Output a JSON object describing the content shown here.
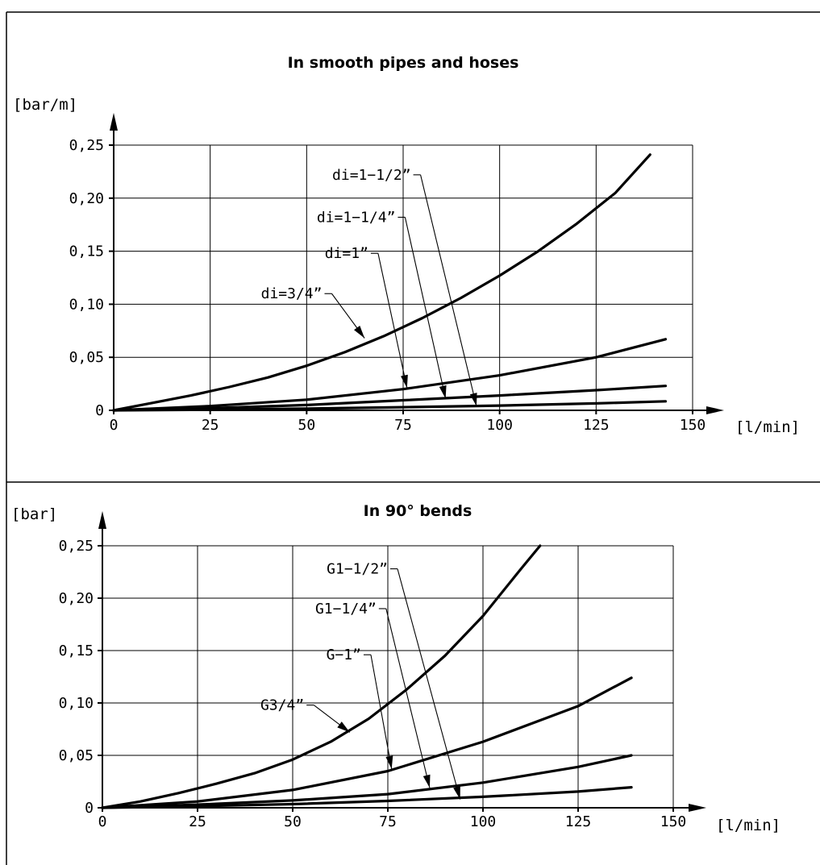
{
  "chart_data": [
    {
      "type": "line",
      "title": "In smooth pipes and hoses",
      "xlabel": "[l/min]",
      "ylabel": "[bar/m]",
      "xlim": [
        0,
        150
      ],
      "ylim": [
        0,
        0.25
      ],
      "x_ticks": [
        "0",
        "25",
        "50",
        "75",
        "100",
        "125",
        "150"
      ],
      "y_ticks": [
        "0",
        "0,05",
        "0,10",
        "0,15",
        "0,20",
        "0,25"
      ],
      "grid": true,
      "series": [
        {
          "name": "di=3/4”",
          "x": [
            0,
            10,
            20,
            30,
            40,
            50,
            60,
            70,
            80,
            90,
            100,
            110,
            120,
            130,
            139
          ],
          "y": [
            0,
            0.007,
            0.014,
            0.022,
            0.031,
            0.042,
            0.055,
            0.07,
            0.087,
            0.106,
            0.127,
            0.15,
            0.176,
            0.205,
            0.241
          ],
          "callout": {
            "label_x": 54,
            "label_y": 0.11,
            "arrow_x": 65,
            "arrow_y": 0.068
          }
        },
        {
          "name": "di=1”",
          "x": [
            0,
            25,
            50,
            75,
            100,
            125,
            143
          ],
          "y": [
            0,
            0.004,
            0.01,
            0.02,
            0.033,
            0.05,
            0.067
          ],
          "callout": {
            "label_x": 66,
            "label_y": 0.148,
            "arrow_x": 76,
            "arrow_y": 0.021
          }
        },
        {
          "name": "di=1−1/4”",
          "x": [
            0,
            25,
            50,
            75,
            100,
            125,
            143
          ],
          "y": [
            0,
            0.002,
            0.005,
            0.0095,
            0.014,
            0.019,
            0.023
          ],
          "callout": {
            "label_x": 73,
            "label_y": 0.182,
            "arrow_x": 86,
            "arrow_y": 0.011
          }
        },
        {
          "name": "di=1−1/2”",
          "x": [
            0,
            25,
            50,
            75,
            100,
            125,
            143
          ],
          "y": [
            0,
            0.0006,
            0.0016,
            0.003,
            0.0045,
            0.0065,
            0.0085
          ],
          "callout": {
            "label_x": 77,
            "label_y": 0.222,
            "arrow_x": 94,
            "arrow_y": 0.004
          }
        }
      ]
    },
    {
      "type": "line",
      "title": "In 90° bends",
      "xlabel": "[l/min]",
      "ylabel": "[bar]",
      "xlim": [
        0,
        150
      ],
      "ylim": [
        0,
        0.25
      ],
      "x_ticks": [
        "0",
        "25",
        "50",
        "75",
        "100",
        "125",
        "150"
      ],
      "y_ticks": [
        "0",
        "0,05",
        "0,10",
        "0,15",
        "0,20",
        "0,25"
      ],
      "grid": true,
      "series": [
        {
          "name": "G3/4”",
          "x": [
            0,
            10,
            20,
            30,
            40,
            50,
            60,
            70,
            80,
            90,
            100,
            110,
            115
          ],
          "y": [
            0,
            0.006,
            0.014,
            0.023,
            0.033,
            0.046,
            0.063,
            0.085,
            0.113,
            0.145,
            0.183,
            0.228,
            0.25
          ],
          "callout": {
            "label_x": 53,
            "label_y": 0.098,
            "arrow_x": 65,
            "arrow_y": 0.072
          }
        },
        {
          "name": "G−1”",
          "x": [
            0,
            25,
            50,
            75,
            100,
            125,
            139
          ],
          "y": [
            0,
            0.006,
            0.017,
            0.035,
            0.063,
            0.097,
            0.124
          ],
          "callout": {
            "label_x": 68,
            "label_y": 0.146,
            "arrow_x": 76,
            "arrow_y": 0.037
          }
        },
        {
          "name": "G1−1/4”",
          "x": [
            0,
            25,
            50,
            75,
            100,
            125,
            139
          ],
          "y": [
            0,
            0.003,
            0.007,
            0.013,
            0.024,
            0.039,
            0.05
          ],
          "callout": {
            "label_x": 72,
            "label_y": 0.19,
            "arrow_x": 86,
            "arrow_y": 0.019
          }
        },
        {
          "name": "G1−1/2”",
          "x": [
            0,
            25,
            50,
            75,
            100,
            125,
            139
          ],
          "y": [
            0,
            0.0015,
            0.0035,
            0.0065,
            0.0105,
            0.0155,
            0.0195
          ],
          "callout": {
            "label_x": 75,
            "label_y": 0.228,
            "arrow_x": 94,
            "arrow_y": 0.008
          }
        }
      ]
    }
  ]
}
